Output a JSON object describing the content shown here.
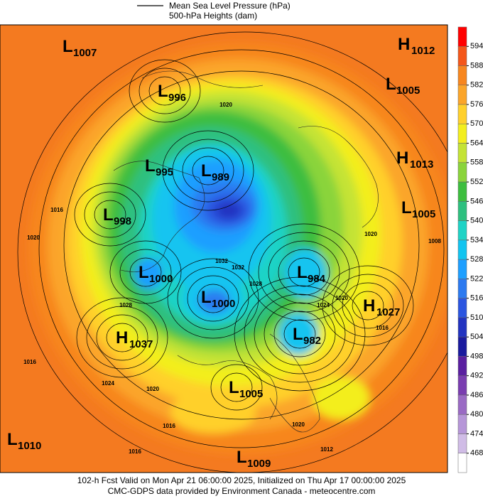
{
  "header": {
    "legend": [
      "Mean Sea Level Pressure (hPa)",
      "500-hPa Heights (dam)"
    ]
  },
  "colorbar": {
    "ticks": [
      594,
      588,
      582,
      576,
      570,
      564,
      558,
      552,
      546,
      540,
      534,
      528,
      522,
      516,
      510,
      504,
      498,
      492,
      486,
      480,
      474,
      468
    ],
    "colors": [
      "#ff0000",
      "#f4561a",
      "#f7861f",
      "#fba52a",
      "#ffd02c",
      "#f3ee1e",
      "#c4e335",
      "#8ad43b",
      "#3dbe3f",
      "#2ec07f",
      "#1fd3c6",
      "#12c4f0",
      "#1e9fff",
      "#2c7af0",
      "#2b55e0",
      "#2233c0",
      "#1a1a9e",
      "#5a1fa0",
      "#7a3db0",
      "#9a6ac4",
      "#b696d8",
      "#d0bce6",
      "#ffffff"
    ]
  },
  "centers": [
    {
      "kind": "L",
      "value": 1007
    },
    {
      "kind": "L",
      "value": 996
    },
    {
      "kind": "H",
      "value": 1012
    },
    {
      "kind": "L",
      "value": 1005
    },
    {
      "kind": "L",
      "value": 995
    },
    {
      "kind": "L",
      "value": 989
    },
    {
      "kind": "H",
      "value": 1013
    },
    {
      "kind": "L",
      "value": 998
    },
    {
      "kind": "L",
      "value": 1005
    },
    {
      "kind": "L",
      "value": 1000
    },
    {
      "kind": "L",
      "value": 984
    },
    {
      "kind": "H",
      "value": 1027
    },
    {
      "kind": "L",
      "value": 1000
    },
    {
      "kind": "L",
      "value": 982
    },
    {
      "kind": "H",
      "value": 1037
    },
    {
      "kind": "L",
      "value": 1005
    },
    {
      "kind": "L",
      "value": 1010
    },
    {
      "kind": "L",
      "value": 1009
    }
  ],
  "contour_labels": [
    1020,
    1016,
    1020,
    1028,
    1024,
    1016,
    1020,
    1032,
    1032,
    1028,
    1024,
    1020,
    1016,
    1008,
    1020,
    1016,
    1012,
    1020,
    1016
  ],
  "footer": [
    "102-h Fcst Valid on Mon Apr 21 06:00:00 2025, Initialized on Thu Apr 17 00:00:00 2025",
    "CMC-GDPS data provided by Environment Canada - meteocentre.com"
  ]
}
